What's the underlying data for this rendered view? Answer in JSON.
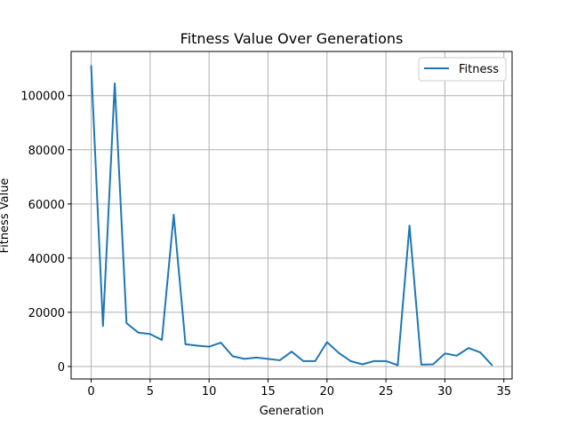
{
  "chart_data": {
    "type": "line",
    "title": "Fitness Value Over Generations",
    "xlabel": "Generation",
    "ylabel": "Fitness Value",
    "xlim": [
      -1.7,
      35.7
    ],
    "ylim": [
      -4600,
      116300
    ],
    "xticks": [
      0,
      5,
      10,
      15,
      20,
      25,
      30,
      35
    ],
    "yticks": [
      0,
      20000,
      40000,
      60000,
      80000,
      100000
    ],
    "ytick_labels": [
      "0",
      "20000",
      "40000",
      "60000",
      "80000",
      "100000"
    ],
    "grid": true,
    "legend": {
      "position": "top-right"
    },
    "series": [
      {
        "name": "Fitness",
        "color": "#1f77b4",
        "x": [
          0,
          1,
          2,
          3,
          4,
          5,
          6,
          7,
          8,
          9,
          10,
          11,
          12,
          13,
          14,
          15,
          16,
          17,
          18,
          19,
          20,
          21,
          22,
          23,
          24,
          25,
          26,
          27,
          28,
          29,
          30,
          31,
          32,
          33,
          34
        ],
        "y": [
          111000,
          15000,
          104500,
          16000,
          12500,
          12000,
          9800,
          56000,
          8200,
          7700,
          7300,
          8800,
          3800,
          2800,
          3300,
          2800,
          2300,
          5500,
          2000,
          2000,
          9000,
          5000,
          2000,
          800,
          2000,
          2000,
          500,
          52000,
          700,
          800,
          4800,
          4000,
          6800,
          5200,
          500
        ]
      }
    ]
  }
}
